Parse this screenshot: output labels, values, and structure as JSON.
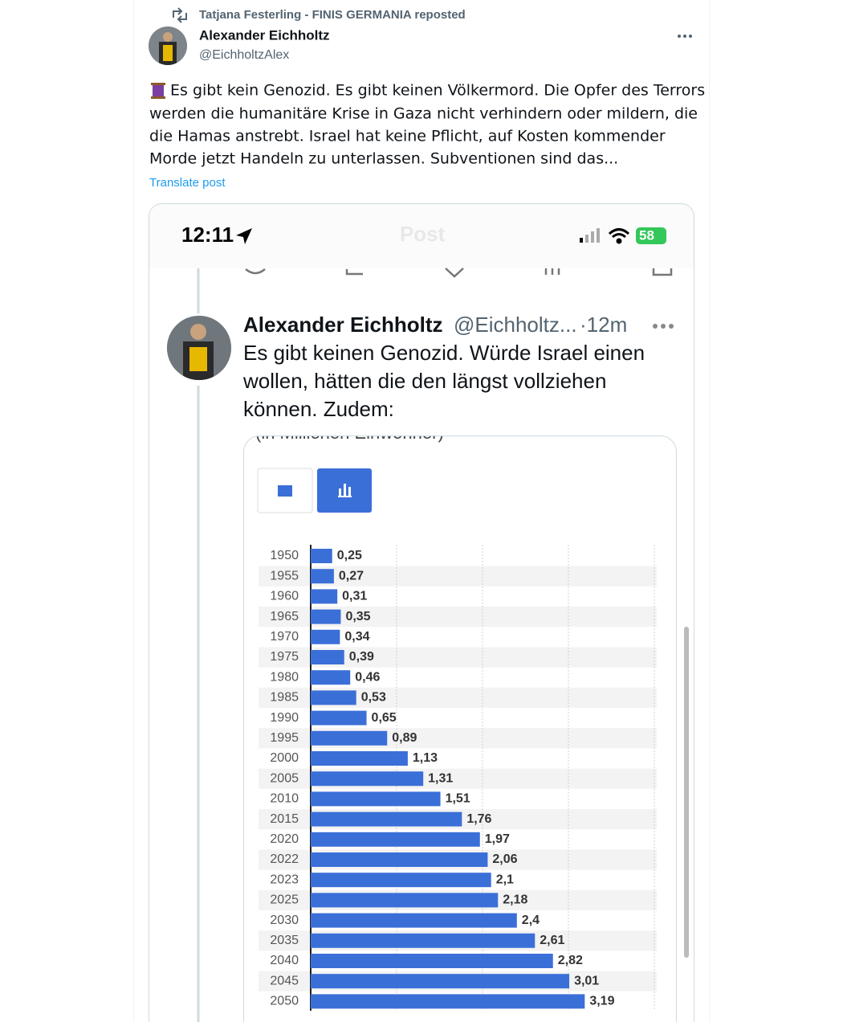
{
  "repost": {
    "text": "Tatjana Festerling - FINIS GERMANIA reposted"
  },
  "post": {
    "author": "Alexander Eichholtz",
    "handle": "@EichholtzAlex",
    "text": [
      "Es gibt kein Genozid. Es gibt keinen Völkermord. Die Opfer des Terrors",
      "werden die humanitäre Krise in Gaza nicht verhindern oder mildern, die",
      "die Hamas anstrebt. Israel hat keine Pflicht, auf Kosten kommender",
      "Morde jetzt Handeln zu unterlassen. Subventionen sind das..."
    ],
    "translate": "Translate post"
  },
  "media": {
    "time": "12:11",
    "header": "Post",
    "battery": "58",
    "quoted_post": {
      "author": "Alexander Eichholtz",
      "handle": "@Eichholtz...",
      "time": "·12m",
      "text": [
        "Es gibt keinen Genozid. Würde Israel einen",
        "wollen, hätten die den längst vollziehen",
        "können. Zudem:"
      ]
    },
    "caption": "(in Millionen Einwohner)",
    "chart": {
      "type": "bar",
      "orientation": "horizontal",
      "categories": [
        "1950",
        "1955",
        "1960",
        "1965",
        "1970",
        "1975",
        "1980",
        "1985",
        "1990",
        "1995",
        "2000",
        "2005",
        "2010",
        "2015",
        "2020",
        "2022",
        "2023",
        "2025",
        "2030",
        "2035",
        "2040",
        "2045",
        "2050"
      ],
      "values": [
        0.25,
        0.27,
        0.31,
        0.35,
        0.34,
        0.39,
        0.46,
        0.53,
        0.65,
        0.89,
        1.13,
        1.31,
        1.51,
        1.76,
        1.97,
        2.06,
        2.1,
        2.18,
        2.4,
        2.61,
        2.82,
        3.01,
        3.19
      ],
      "value_labels": [
        "0,25",
        "0,27",
        "0,31",
        "0,35",
        "0,34",
        "0,39",
        "0,46",
        "0,53",
        "0,65",
        "0,89",
        "1,13",
        "1,31",
        "1,51",
        "1,76",
        "1,97",
        "2,06",
        "2,1",
        "2,18",
        "2,4",
        "2,61",
        "2,82",
        "3,01",
        "3,19"
      ],
      "color": "#3b6fd8",
      "xlim": [
        0,
        4
      ],
      "xticks": [
        1,
        2,
        3,
        4
      ],
      "grid": true
    }
  }
}
